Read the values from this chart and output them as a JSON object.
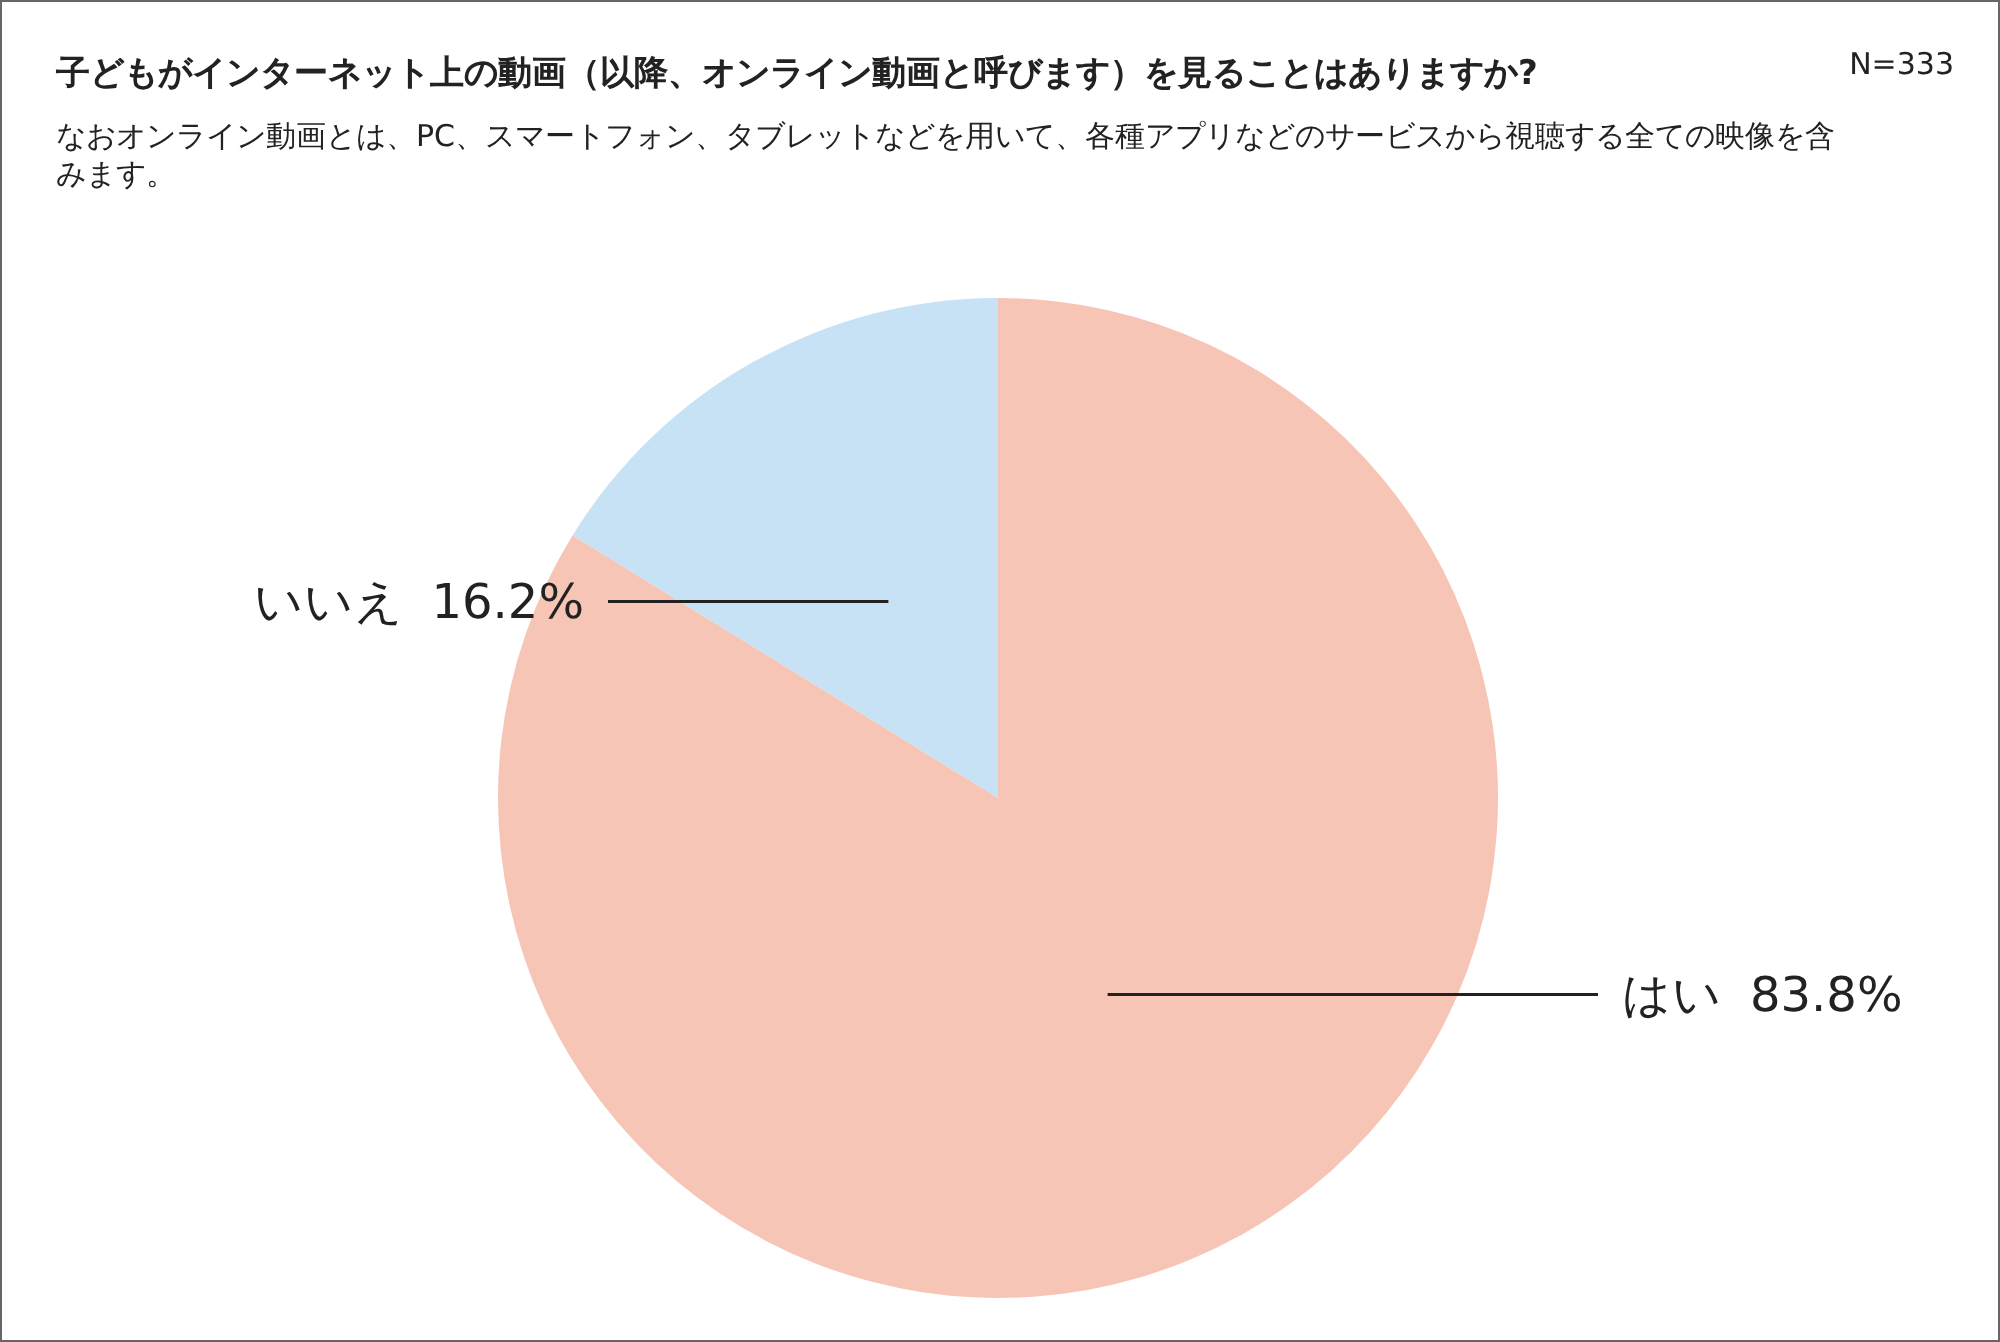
{
  "chart_data": {
    "type": "pie",
    "title": "子どもがインターネット上の動画（以降、オンライン動画と呼びます）を見ることはありますか?",
    "subtitle": "なおオンライン動画とは、PC、スマートフォン、タブレットなどを用いて、各種アプリなどのサービスから視聴する全ての映像を含みます。",
    "annotations": [
      "N=333"
    ],
    "categories": [
      "いいえ",
      "はい"
    ],
    "values": [
      16.2,
      83.8
    ],
    "value_labels": [
      "16.2%",
      "83.8%"
    ],
    "colors": [
      "#c7e1f5",
      "#f6c5b5"
    ],
    "legend": false
  }
}
